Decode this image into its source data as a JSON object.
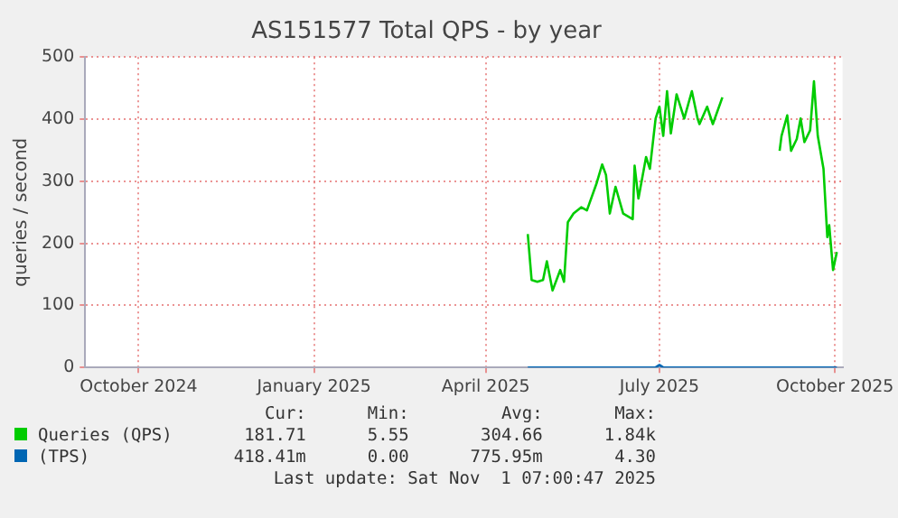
{
  "chart_data": {
    "type": "line",
    "title": "AS151577 Total QPS - by year",
    "ylabel": "queries / second",
    "xlim": [
      "2024-09-03",
      "2025-10-05"
    ],
    "xticks": [
      {
        "value": "2024-10-01",
        "label": "October 2024"
      },
      {
        "value": "2025-01-01",
        "label": "January 2025"
      },
      {
        "value": "2025-04-01",
        "label": "April 2025"
      },
      {
        "value": "2025-07-01",
        "label": "July 2025"
      },
      {
        "value": "2025-10-01",
        "label": "October 2025"
      }
    ],
    "ylim": [
      0,
      500
    ],
    "yticks": [
      0,
      100,
      200,
      300,
      400,
      500
    ],
    "grid": true,
    "legend": "bottom",
    "marker": "none",
    "line_style": "solid",
    "series": [
      {
        "name": "Queries (QPS)",
        "color": "#00cc00",
        "x": [
          "2025-04-23",
          "2025-04-25",
          "2025-04-28",
          "2025-05-01",
          "2025-05-03",
          "2025-05-06",
          "2025-05-10",
          "2025-05-12",
          "2025-05-14",
          "2025-05-17",
          "2025-05-21",
          "2025-05-24",
          "2025-05-29",
          "2025-06-01",
          "2025-06-03",
          "2025-06-05",
          "2025-06-08",
          "2025-06-12",
          "2025-06-17",
          "2025-06-18",
          "2025-06-20",
          "2025-06-24",
          "2025-06-26",
          "2025-06-29",
          "2025-07-01",
          "2025-07-03",
          "2025-07-05",
          "2025-07-07",
          "2025-07-10",
          "2025-07-14",
          "2025-07-18",
          "2025-07-21",
          "2025-07-22",
          "2025-07-26",
          "2025-07-29",
          "2025-08-03",
          "2025-08-20",
          "2025-09-02",
          "2025-09-03",
          "2025-09-06",
          "2025-09-08",
          "2025-09-11",
          "2025-09-13",
          "2025-09-15",
          "2025-09-18",
          "2025-09-20",
          "2025-09-22",
          "2025-09-25",
          "2025-09-27",
          "2025-09-28",
          "2025-09-30",
          "2025-10-02"
        ],
        "values": [
          215,
          141,
          138,
          141,
          171,
          124,
          157,
          138,
          234,
          248,
          258,
          253,
          296,
          327,
          310,
          248,
          291,
          248,
          239,
          325,
          272,
          339,
          320,
          401,
          420,
          373,
          445,
          377,
          440,
          401,
          445,
          401,
          392,
          420,
          392,
          435,
          null,
          349,
          373,
          406,
          349,
          368,
          401,
          363,
          382,
          461,
          373,
          320,
          210,
          229,
          157,
          186
        ]
      },
      {
        "name": "(TPS)",
        "color": "#0066b3",
        "x": [
          "2025-04-23",
          "2025-06-29",
          "2025-07-01",
          "2025-07-03",
          "2025-10-02"
        ],
        "values": [
          0,
          0,
          4,
          0,
          0
        ]
      }
    ],
    "annotations": [
      "Cur:",
      "Min:",
      "Avg:",
      "Max:",
      "181.71",
      "5.55",
      "304.66",
      "1.84k",
      "418.41m",
      "0.00",
      "775.95m",
      "4.30",
      "Last update: Sat Nov  1 07:00:47 2025"
    ]
  }
}
